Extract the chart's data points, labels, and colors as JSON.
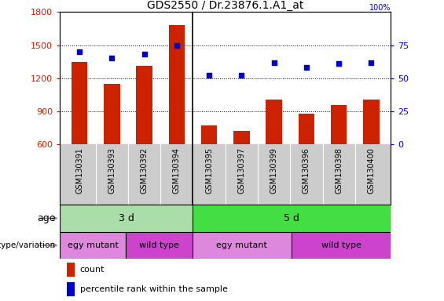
{
  "title": "GDS2550 / Dr.23876.1.A1_at",
  "samples": [
    "GSM130391",
    "GSM130393",
    "GSM130392",
    "GSM130394",
    "GSM130395",
    "GSM130397",
    "GSM130399",
    "GSM130396",
    "GSM130398",
    "GSM130400"
  ],
  "counts": [
    1350,
    1150,
    1310,
    1680,
    770,
    720,
    1010,
    880,
    960,
    1010
  ],
  "percentiles": [
    70,
    65,
    68,
    75,
    52,
    52,
    62,
    58,
    61,
    62
  ],
  "ylim_left": [
    600,
    1800
  ],
  "ylim_right": [
    0,
    100
  ],
  "yticks_left": [
    600,
    900,
    1200,
    1500,
    1800
  ],
  "yticks_right": [
    0,
    25,
    50,
    75,
    100
  ],
  "bar_color": "#cc2200",
  "dot_color": "#0000cc",
  "age_groups": [
    {
      "label": "3 d",
      "start": 0,
      "end": 4,
      "color": "#aaddaa"
    },
    {
      "label": "5 d",
      "start": 4,
      "end": 10,
      "color": "#44dd44"
    }
  ],
  "genotype_groups": [
    {
      "label": "egy mutant",
      "start": 0,
      "end": 2,
      "color": "#dd88dd"
    },
    {
      "label": "wild type",
      "start": 2,
      "end": 4,
      "color": "#cc44cc"
    },
    {
      "label": "egy mutant",
      "start": 4,
      "end": 7,
      "color": "#dd88dd"
    },
    {
      "label": "wild type",
      "start": 7,
      "end": 10,
      "color": "#cc44cc"
    }
  ],
  "age_label": "age",
  "genotype_label": "genotype/variation",
  "legend_count": "count",
  "legend_percentile": "percentile rank within the sample",
  "background_color": "#ffffff",
  "tick_label_color_left": "#cc2200",
  "tick_label_color_right": "#0000cc",
  "title_fontsize": 10,
  "bar_width": 0.5,
  "label_bg_color": "#cccccc",
  "divider_color": "#000000",
  "n_samples": 10
}
